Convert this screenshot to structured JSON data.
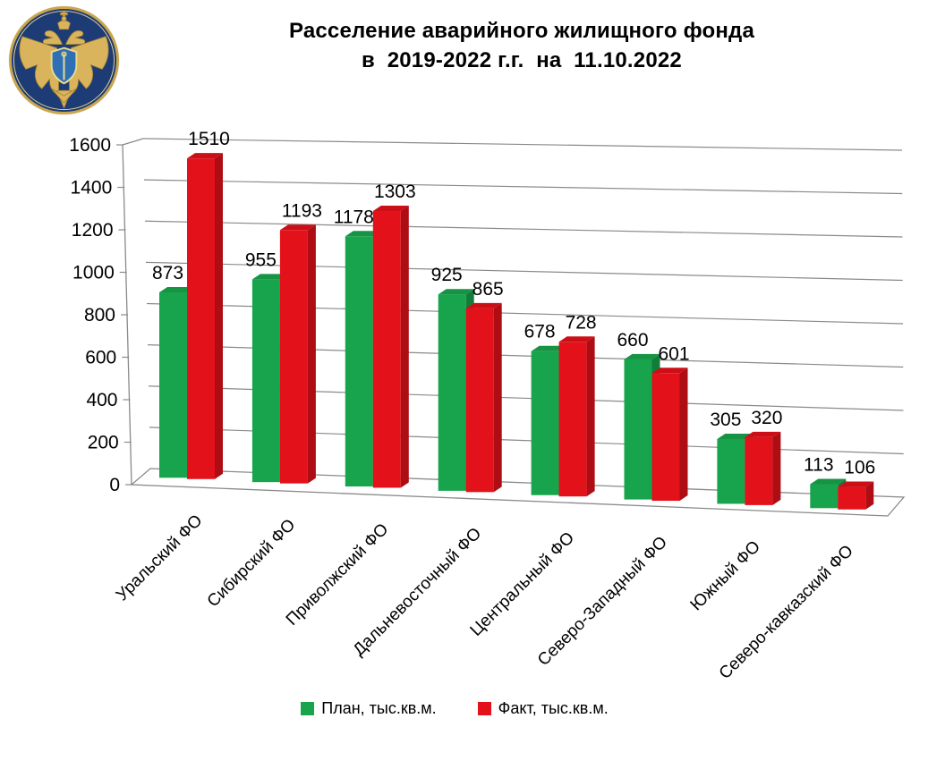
{
  "header": {
    "logo_icon": "double-headed-eagle-emblem"
  },
  "chart_data": {
    "type": "bar",
    "style": "3d-clustered-column",
    "title": "Расселение аварийного жилищного фонда",
    "subtitle": "в  2019-2022 г.г.  на  11.10.2022",
    "categories": [
      "Уральский ФО",
      "Сибирский ФО",
      "Приволжский ФО",
      "Дальневосточный ФО",
      "Центральный ФО",
      "Северо-Западный ФО",
      "Южный ФО",
      "Северо-кавказский ФО"
    ],
    "series": [
      {
        "name": "План, тыс.кв.м.",
        "color": "#18a44c",
        "values": [
          873,
          955,
          1178,
          925,
          678,
          660,
          305,
          113
        ]
      },
      {
        "name": "Факт, тыс.кв.м.",
        "color": "#e31119",
        "values": [
          1510,
          1193,
          1303,
          865,
          728,
          601,
          320,
          106
        ]
      }
    ],
    "ylim": [
      0,
      1600
    ],
    "ytick_step": 200,
    "grid": true,
    "legend_position": "bottom"
  }
}
